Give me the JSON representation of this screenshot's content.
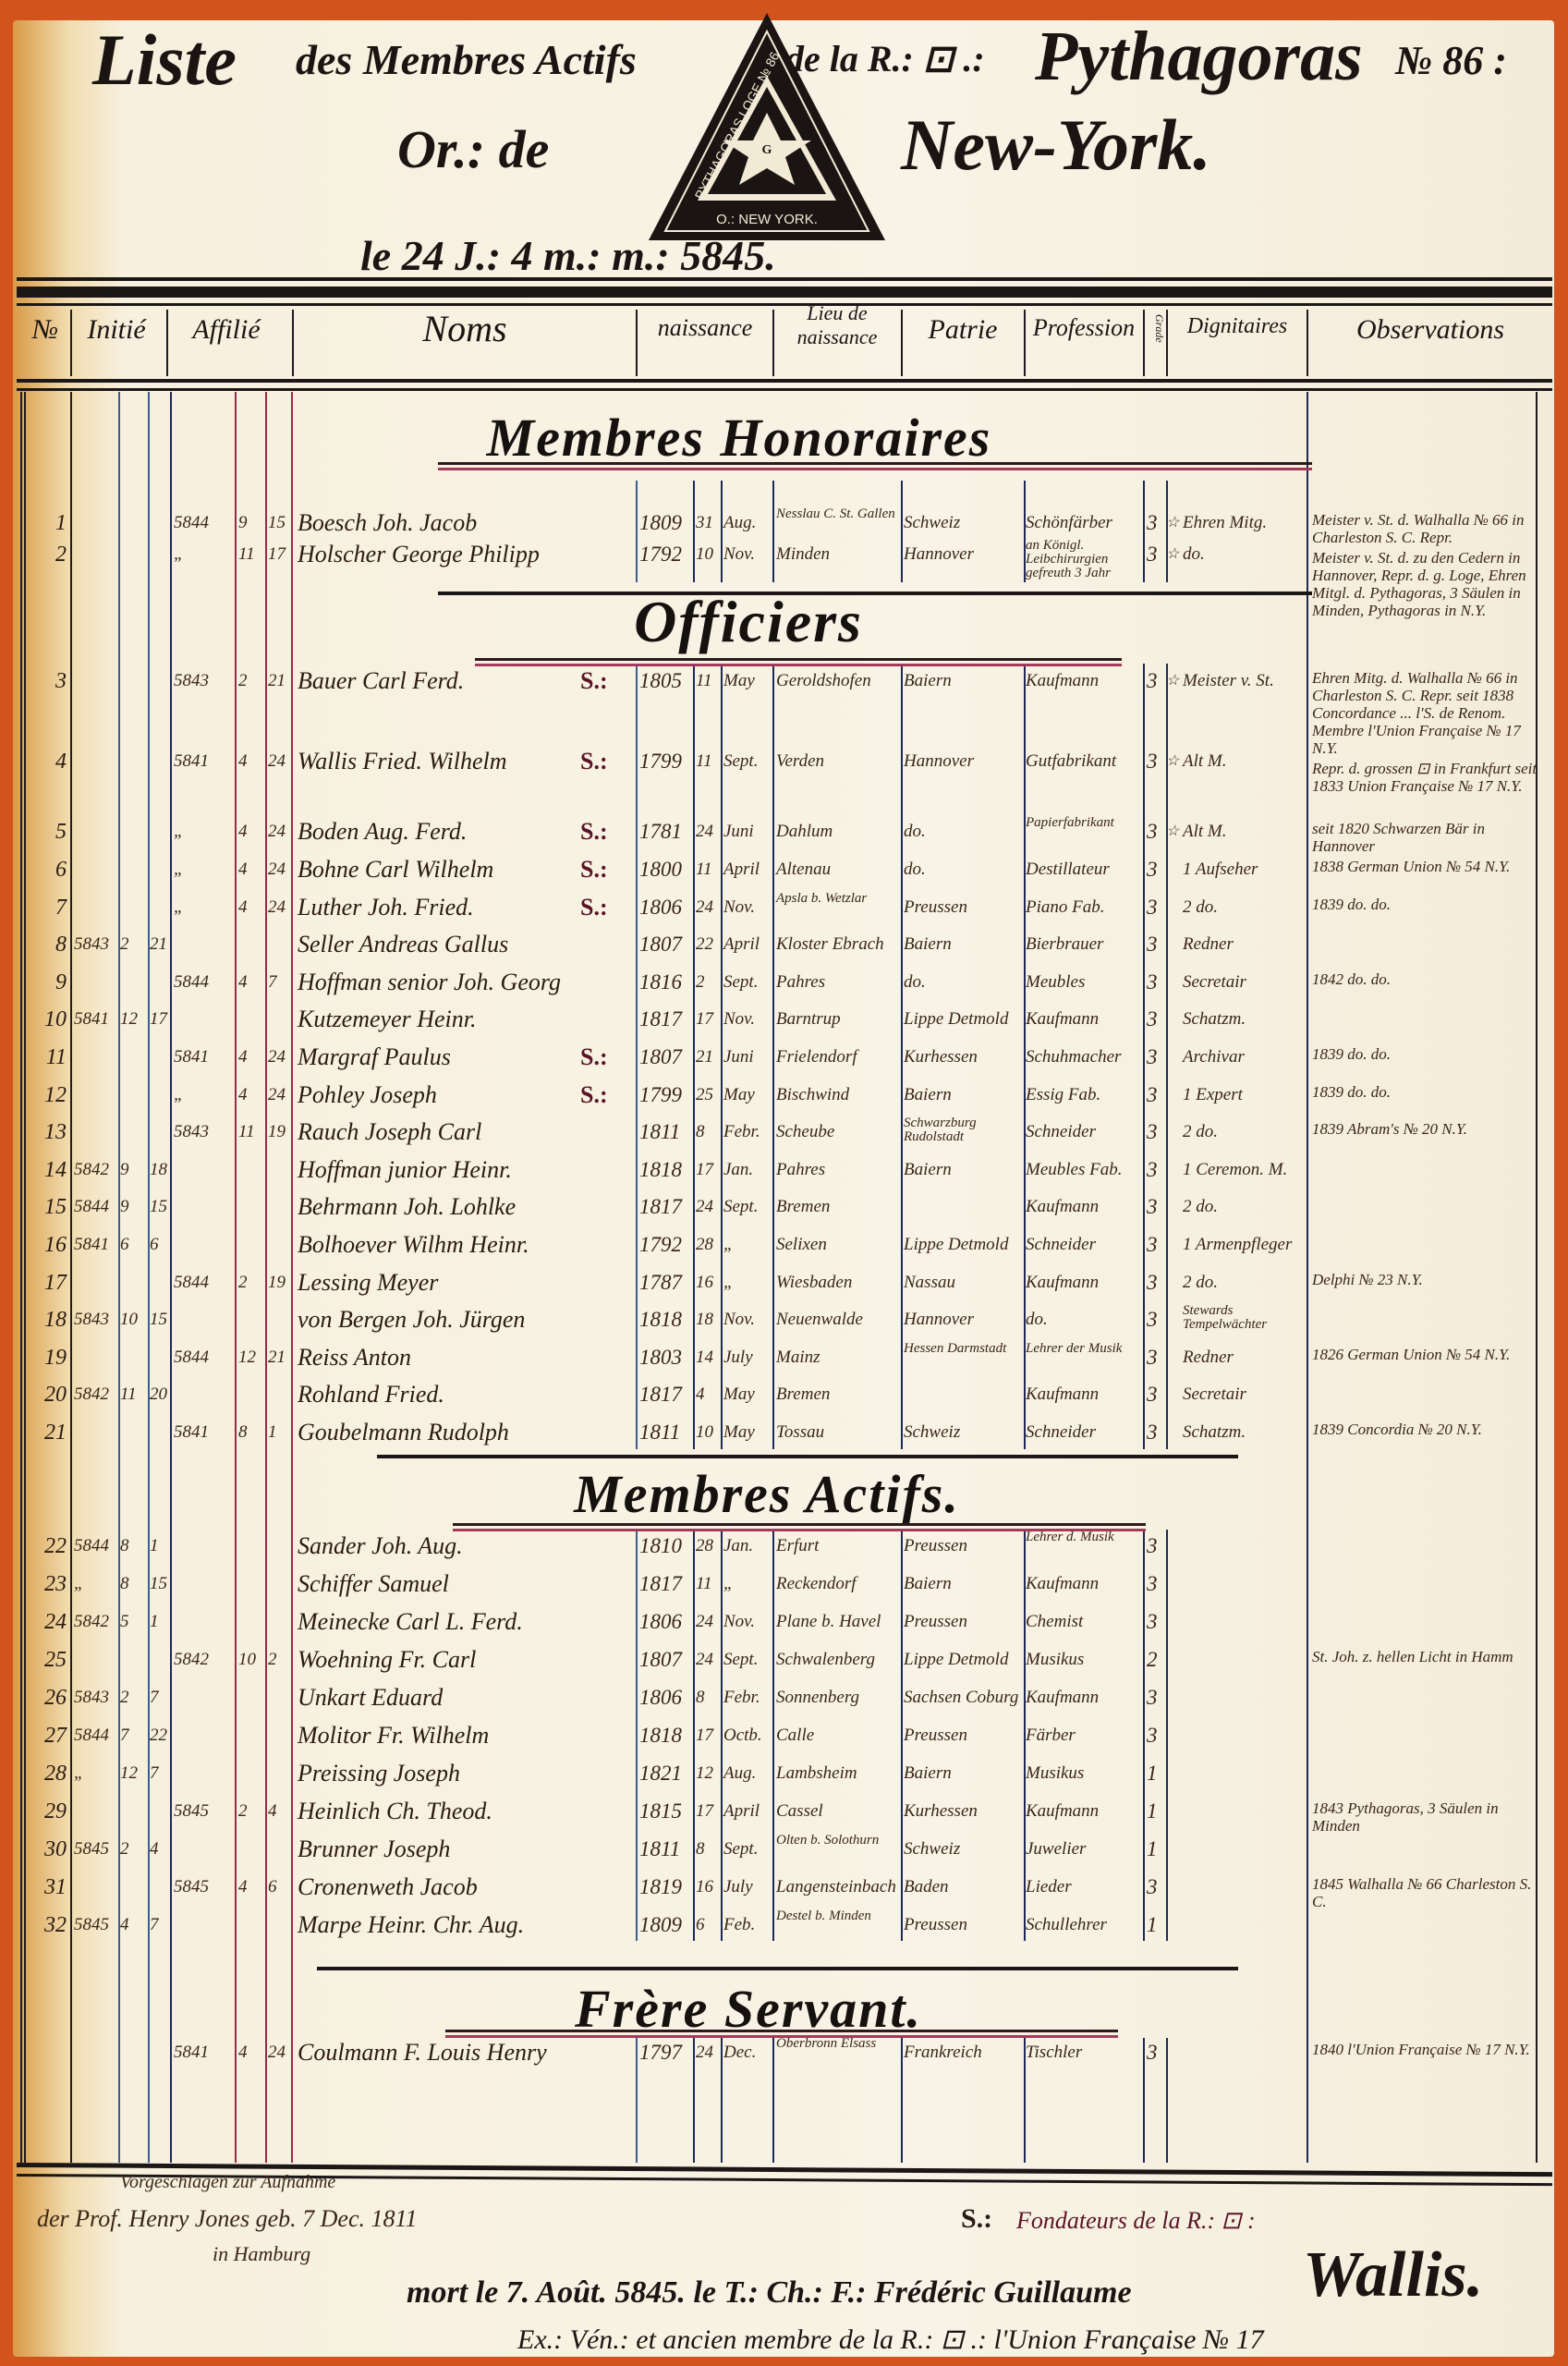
{
  "header": {
    "title_liste": "Liste",
    "title_members": "des Membres Actifs",
    "title_de_la": "de la R.: ⊡ .:",
    "title_lodge": "Pythagoras",
    "title_number": "№ 86 :",
    "orient_label": "Or.: de",
    "orient_city": "New-York.",
    "date": "le 24 J.: 4 m.: m.: 5845."
  },
  "seal": {
    "ring_text": "PYTHAGORAS LOGE № 86",
    "bottom_text": "O.: NEW YORK.",
    "center_text": "G"
  },
  "columns": {
    "num": "№",
    "initie": "Initié",
    "affilie": "Affilié",
    "noms": "Noms",
    "naissance": "naissance",
    "lieu": "Lieu de naissance",
    "patrie": "Patrie",
    "profession": "Profession",
    "grade": "Grade",
    "dignitaires": "Dignitaires",
    "observations": "Observations"
  },
  "sections": {
    "honoraires": "Membres Honoraires",
    "officiers": "Officiers",
    "actifs": "Membres Actifs.",
    "servant": "Frère Servant."
  },
  "rows": [
    {
      "num": "1",
      "aff_y": "5844",
      "aff_m": "9",
      "aff_d": "15",
      "name": "Boesch Joh. Jacob",
      "by": "1809",
      "bd": "31",
      "bm": "Aug.",
      "place": "Nesslau C. St. Gallen",
      "patrie": "Schweiz",
      "prof": "Schönfärber",
      "grade": "3",
      "star": true,
      "dign": "Ehren Mitg.",
      "obs": "Meister v. St. d. Walhalla № 66 in Charleston S. C. Repr."
    },
    {
      "num": "2",
      "aff_y": "„",
      "aff_m": "11",
      "aff_d": "17",
      "name": "Holscher George Philipp",
      "by": "1792",
      "bd": "10",
      "bm": "Nov.",
      "place": "Minden",
      "patrie": "Hannover",
      "prof": "an Königl. Leibchirurgien gefreuth 3 Jahr",
      "grade": "3",
      "star": true,
      "dign": "do.",
      "obs": "Meister v. St. d. zu den Cedern in Hannover, Repr. d. g. Loge, Ehren Mitgl. d. Pythagoras, 3 Säulen in Minden, Pythagoras in N.Y."
    },
    {
      "num": "3",
      "aff_y": "5843",
      "aff_m": "2",
      "aff_d": "21",
      "name": "Bauer Carl Ferd.",
      "mark": "S.:",
      "by": "1805",
      "bd": "11",
      "bm": "May",
      "place": "Geroldshofen",
      "patrie": "Baiern",
      "prof": "Kaufmann",
      "grade": "3",
      "star": true,
      "dign": "Meister v. St.",
      "obs": "Ehren Mitg. d. Walhalla № 66 in Charleston S. C. Repr. seit 1838 Concordance ... l'S. de Renom. Membre l'Union Française № 17 N.Y."
    },
    {
      "num": "4",
      "aff_y": "5841",
      "aff_m": "4",
      "aff_d": "24",
      "name": "Wallis Fried. Wilhelm",
      "mark": "S.:",
      "by": "1799",
      "bd": "11",
      "bm": "Sept.",
      "place": "Verden",
      "patrie": "Hannover",
      "prof": "Gutfabrikant",
      "grade": "3",
      "star": true,
      "dign": "Alt M.",
      "obs": "Repr. d. grossen ⊡ in Frankfurt seit 1833 Union Française № 17 N.Y."
    },
    {
      "num": "5",
      "aff_y": "„",
      "aff_m": "4",
      "aff_d": "24",
      "name": "Boden Aug. Ferd.",
      "mark": "S.:",
      "by": "1781",
      "bd": "24",
      "bm": "Juni",
      "place": "Dahlum",
      "patrie": "do.",
      "prof": "Papierfabrikant",
      "grade": "3",
      "star": true,
      "dign": "Alt M.",
      "obs": "seit 1820 Schwarzen Bär in Hannover"
    },
    {
      "num": "6",
      "aff_y": "„",
      "aff_m": "4",
      "aff_d": "24",
      "name": "Bohne Carl Wilhelm",
      "mark": "S.:",
      "by": "1800",
      "bd": "11",
      "bm": "April",
      "place": "Altenau",
      "patrie": "do.",
      "prof": "Destillateur",
      "grade": "3",
      "dign": "1 Aufseher",
      "obs": "1838 German Union № 54 N.Y."
    },
    {
      "num": "7",
      "aff_y": "„",
      "aff_m": "4",
      "aff_d": "24",
      "name": "Luther Joh. Fried.",
      "mark": "S.:",
      "by": "1806",
      "bd": "24",
      "bm": "Nov.",
      "place": "Apsla b. Wetzlar",
      "patrie": "Preussen",
      "prof": "Piano Fab.",
      "grade": "3",
      "dign": "2 do.",
      "obs": "1839 do. do."
    },
    {
      "num": "8",
      "ini_y": "5843",
      "ini_m": "2",
      "ini_d": "21",
      "name": "Seller Andreas Gallus",
      "by": "1807",
      "bd": "22",
      "bm": "April",
      "place": "Kloster Ebrach",
      "patrie": "Baiern",
      "prof": "Bierbrauer",
      "grade": "3",
      "dign": "Redner"
    },
    {
      "num": "9",
      "aff_y": "5844",
      "aff_m": "4",
      "aff_d": "7",
      "name": "Hoffman senior Joh. Georg",
      "by": "1816",
      "bd": "2",
      "bm": "Sept.",
      "place": "Pahres",
      "patrie": "do.",
      "prof": "Meubles",
      "grade": "3",
      "dign": "Secretair",
      "obs": "1842 do. do."
    },
    {
      "num": "10",
      "ini_y": "5841",
      "ini_m": "12",
      "ini_d": "17",
      "name": "Kutzemeyer Heinr.",
      "by": "1817",
      "bd": "17",
      "bm": "Nov.",
      "place": "Barntrup",
      "patrie": "Lippe Detmold",
      "prof": "Kaufmann",
      "grade": "3",
      "dign": "Schatzm."
    },
    {
      "num": "11",
      "aff_y": "5841",
      "aff_m": "4",
      "aff_d": "24",
      "name": "Margraf Paulus",
      "mark": "S.:",
      "by": "1807",
      "bd": "21",
      "bm": "Juni",
      "place": "Frielendorf",
      "patrie": "Kurhessen",
      "prof": "Schuhmacher",
      "grade": "3",
      "dign": "Archivar",
      "obs": "1839 do. do."
    },
    {
      "num": "12",
      "aff_y": "„",
      "aff_m": "4",
      "aff_d": "24",
      "name": "Pohley Joseph",
      "mark": "S.:",
      "by": "1799",
      "bd": "25",
      "bm": "May",
      "place": "Bischwind",
      "patrie": "Baiern",
      "prof": "Essig Fab.",
      "grade": "3",
      "dign": "1 Expert",
      "obs": "1839 do. do."
    },
    {
      "num": "13",
      "aff_y": "5843",
      "aff_m": "11",
      "aff_d": "19",
      "name": "Rauch Joseph Carl",
      "by": "1811",
      "bd": "8",
      "bm": "Febr.",
      "place": "Scheube",
      "patrie": "Schwarzburg Rudolstadt",
      "prof": "Schneider",
      "grade": "3",
      "dign": "2 do.",
      "obs": "1839 Abram's № 20 N.Y."
    },
    {
      "num": "14",
      "ini_y": "5842",
      "ini_m": "9",
      "ini_d": "18",
      "name": "Hoffman junior Heinr.",
      "by": "1818",
      "bd": "17",
      "bm": "Jan.",
      "place": "Pahres",
      "patrie": "Baiern",
      "prof": "Meubles Fab.",
      "grade": "3",
      "dign": "1 Ceremon. M."
    },
    {
      "num": "15",
      "ini_y": "5844",
      "ini_m": "9",
      "ini_d": "15",
      "name": "Behrmann Joh. Lohlke",
      "by": "1817",
      "bd": "24",
      "bm": "Sept.",
      "place": "Bremen",
      "patrie": "",
      "prof": "Kaufmann",
      "grade": "3",
      "dign": "2 do."
    },
    {
      "num": "16",
      "ini_y": "5841",
      "ini_m": "6",
      "ini_d": "6",
      "name": "Bolhoever Wilhm Heinr.",
      "by": "1792",
      "bd": "28",
      "bm": "„",
      "place": "Selixen",
      "patrie": "Lippe Detmold",
      "prof": "Schneider",
      "grade": "3",
      "dign": "1 Armenpfleger"
    },
    {
      "num": "17",
      "aff_y": "5844",
      "aff_m": "2",
      "aff_d": "19",
      "name": "Lessing Meyer",
      "by": "1787",
      "bd": "16",
      "bm": "„",
      "place": "Wiesbaden",
      "patrie": "Nassau",
      "prof": "Kaufmann",
      "grade": "3",
      "dign": "2 do.",
      "obs": "Delphi № 23 N.Y."
    },
    {
      "num": "18",
      "ini_y": "5843",
      "ini_m": "10",
      "ini_d": "15",
      "name": "von Bergen Joh. Jürgen",
      "by": "1818",
      "bd": "18",
      "bm": "Nov.",
      "place": "Neuenwalde",
      "patrie": "Hannover",
      "prof": "do.",
      "grade": "3",
      "dign": "Stewards Tempelwächter"
    },
    {
      "num": "19",
      "aff_y": "5844",
      "aff_m": "12",
      "aff_d": "21",
      "name": "Reiss Anton",
      "by": "1803",
      "bd": "14",
      "bm": "July",
      "place": "Mainz",
      "patrie": "Hessen Darmstadt",
      "prof": "Lehrer der Musik",
      "grade": "3",
      "dign": "Redner",
      "obs": "1826 German Union № 54 N.Y."
    },
    {
      "num": "20",
      "ini_y": "5842",
      "ini_m": "11",
      "ini_d": "20",
      "name": "Rohland Fried.",
      "by": "1817",
      "bd": "4",
      "bm": "May",
      "place": "Bremen",
      "patrie": "",
      "prof": "Kaufmann",
      "grade": "3",
      "dign": "Secretair"
    },
    {
      "num": "21",
      "aff_y": "5841",
      "aff_m": "8",
      "aff_d": "1",
      "name": "Goubelmann Rudolph",
      "by": "1811",
      "bd": "10",
      "bm": "May",
      "place": "Tossau",
      "patrie": "Schweiz",
      "prof": "Schneider",
      "grade": "3",
      "dign": "Schatzm.",
      "obs": "1839 Concordia № 20 N.Y."
    },
    {
      "num": "22",
      "ini_y": "5844",
      "ini_m": "8",
      "ini_d": "1",
      "name": "Sander Joh. Aug.",
      "by": "1810",
      "bd": "28",
      "bm": "Jan.",
      "place": "Erfurt",
      "patrie": "Preussen",
      "prof": "Lehrer d. Musik",
      "grade": "3"
    },
    {
      "num": "23",
      "ini_y": "„",
      "ini_m": "8",
      "ini_d": "15",
      "name": "Schiffer Samuel",
      "by": "1817",
      "bd": "11",
      "bm": "„",
      "place": "Reckendorf",
      "patrie": "Baiern",
      "prof": "Kaufmann",
      "grade": "3"
    },
    {
      "num": "24",
      "ini_y": "5842",
      "ini_m": "5",
      "ini_d": "1",
      "name": "Meinecke Carl L. Ferd.",
      "by": "1806",
      "bd": "24",
      "bm": "Nov.",
      "place": "Plane b. Havel",
      "patrie": "Preussen",
      "prof": "Chemist",
      "grade": "3"
    },
    {
      "num": "25",
      "aff_y": "5842",
      "aff_m": "10",
      "aff_d": "2",
      "name": "Woehning Fr. Carl",
      "by": "1807",
      "bd": "24",
      "bm": "Sept.",
      "place": "Schwalenberg",
      "patrie": "Lippe Detmold",
      "prof": "Musikus",
      "grade": "2",
      "obs": "St. Joh. z. hellen Licht in Hamm"
    },
    {
      "num": "26",
      "ini_y": "5843",
      "ini_m": "2",
      "ini_d": "7",
      "name": "Unkart Eduard",
      "by": "1806",
      "bd": "8",
      "bm": "Febr.",
      "place": "Sonnenberg",
      "patrie": "Sachsen Coburg",
      "prof": "Kaufmann",
      "grade": "3"
    },
    {
      "num": "27",
      "ini_y": "5844",
      "ini_m": "7",
      "ini_d": "22",
      "name": "Molitor Fr. Wilhelm",
      "by": "1818",
      "bd": "17",
      "bm": "Octb.",
      "place": "Calle",
      "patrie": "Preussen",
      "prof": "Färber",
      "grade": "3"
    },
    {
      "num": "28",
      "ini_y": "„",
      "ini_m": "12",
      "ini_d": "7",
      "name": "Preissing Joseph",
      "by": "1821",
      "bd": "12",
      "bm": "Aug.",
      "place": "Lambsheim",
      "patrie": "Baiern",
      "prof": "Musikus",
      "grade": "1"
    },
    {
      "num": "29",
      "aff_y": "5845",
      "aff_m": "2",
      "aff_d": "4",
      "name": "Heinlich Ch. Theod.",
      "by": "1815",
      "bd": "17",
      "bm": "April",
      "place": "Cassel",
      "patrie": "Kurhessen",
      "prof": "Kaufmann",
      "grade": "1",
      "obs": "1843 Pythagoras, 3 Säulen in Minden"
    },
    {
      "num": "30",
      "ini_y": "5845",
      "ini_m": "2",
      "ini_d": "4",
      "name": "Brunner Joseph",
      "by": "1811",
      "bd": "8",
      "bm": "Sept.",
      "place": "Olten b. Solothurn",
      "patrie": "Schweiz",
      "prof": "Juwelier",
      "grade": "1"
    },
    {
      "num": "31",
      "aff_y": "5845",
      "aff_m": "4",
      "aff_d": "6",
      "name": "Cronenweth Jacob",
      "by": "1819",
      "bd": "16",
      "bm": "July",
      "place": "Langensteinbach",
      "patrie": "Baden",
      "prof": "Lieder",
      "grade": "3",
      "obs": "1845 Walhalla № 66 Charleston S. C."
    },
    {
      "num": "32",
      "ini_y": "5845",
      "ini_m": "4",
      "ini_d": "7",
      "name": "Marpe Heinr. Chr. Aug.",
      "by": "1809",
      "bd": "6",
      "bm": "Feb.",
      "place": "Destel b. Minden",
      "patrie": "Preussen",
      "prof": "Schullehrer",
      "grade": "1"
    },
    {
      "num": "",
      "aff_y": "5841",
      "aff_m": "4",
      "aff_d": "24",
      "name": "Coulmann F. Louis Henry",
      "by": "1797",
      "bd": "24",
      "bm": "Dec.",
      "place": "Oberbronn Elsass",
      "patrie": "Frankreich",
      "prof": "Tischler",
      "grade": "3",
      "obs": "1840 l'Union Française № 17 N.Y."
    }
  ],
  "footer": {
    "proposed_heading": "Vorgeschlagen zur Aufnahme",
    "proposed": "der Prof. Henry Jones geb. 7 Dec. 1811",
    "proposed_place": "in Hamburg",
    "founders_mark": "S.:",
    "founders": "Fondateurs de la R.: ⊡ :",
    "death_note": "mort le 7. Août. 5845. le T.: Ch.: F.: Frédéric Guillaume",
    "signature": "Wallis.",
    "death_note_2": "Ex.: Vén.: et ancien membre de la R.: ⊡ .: l'Union Française № 17"
  },
  "colors": {
    "paper": "#f7f0de",
    "border": "#d2541c",
    "ink": "#1a1512",
    "red_rule": "#9a2a4a",
    "blue_rule": "#3b5d8f"
  }
}
